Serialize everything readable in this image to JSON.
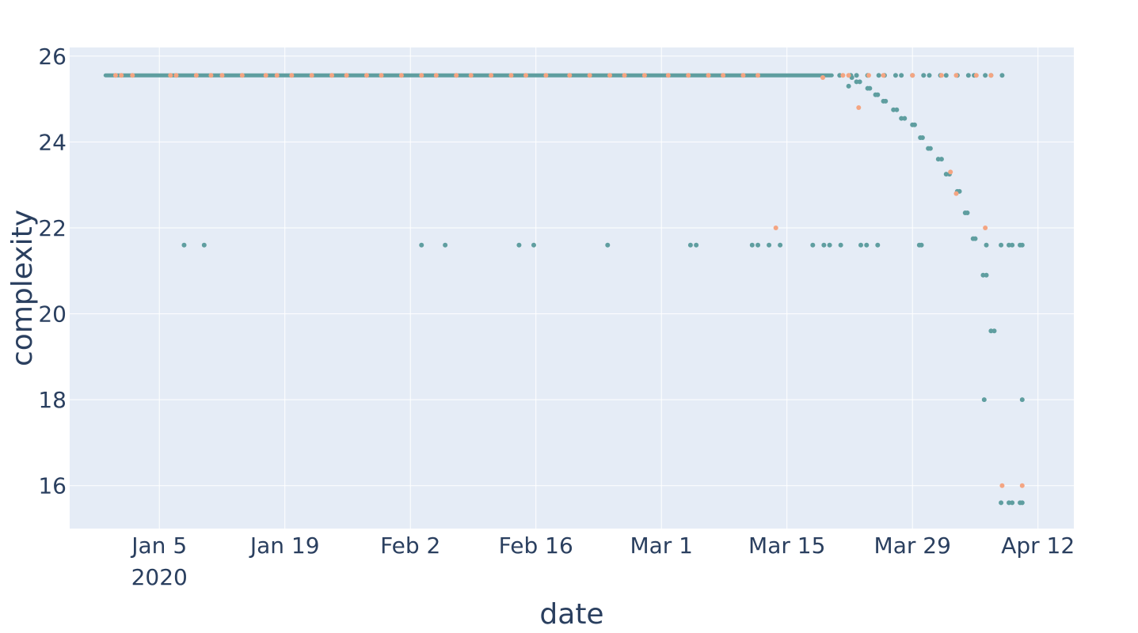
{
  "chart_data": {
    "type": "scatter",
    "title": "",
    "xlabel": "date",
    "ylabel": "complexity",
    "xlim": [
      "2019-12-26",
      "2020-04-16"
    ],
    "ylim": [
      15.0,
      26.2
    ],
    "grid": true,
    "legend": "none",
    "x_ticks": [
      {
        "date": "2020-01-05",
        "label": "Jan 5",
        "sublabel": "2020"
      },
      {
        "date": "2020-01-19",
        "label": "Jan 19"
      },
      {
        "date": "2020-02-02",
        "label": "Feb 2"
      },
      {
        "date": "2020-02-16",
        "label": "Feb 16"
      },
      {
        "date": "2020-03-01",
        "label": "Mar 1"
      },
      {
        "date": "2020-03-15",
        "label": "Mar 15"
      },
      {
        "date": "2020-03-29",
        "label": "Mar 29"
      },
      {
        "date": "2020-04-12",
        "label": "Apr 12"
      }
    ],
    "y_ticks": [
      16,
      18,
      20,
      22,
      24,
      26
    ],
    "colors": {
      "series_teal": "#5f9ea0",
      "series_salmon": "#f4a582",
      "plot_bg": "#e5ecf6",
      "grid": "#ffffff",
      "text": "#2a3f5f"
    },
    "series": [
      {
        "color": "#5f9ea0",
        "band": {
          "start": "2019-12-30",
          "end": "2020-03-20",
          "y": 25.55
        },
        "points": [
          [
            "2020-01-08",
            21.6
          ],
          [
            "2020-01-10",
            21.6
          ],
          [
            "2020-02-03",
            21.6
          ],
          [
            "2020-02-06",
            21.6
          ],
          [
            "2020-02-14",
            21.6
          ],
          [
            "2020-02-16",
            21.6
          ],
          [
            "2020-02-24",
            21.6
          ],
          [
            "2020-03-04",
            21.6
          ],
          [
            "2020-03-05",
            21.6
          ],
          [
            "2020-03-11",
            21.6
          ],
          [
            "2020-03-12",
            21.6
          ],
          [
            "2020-03-13",
            21.6
          ],
          [
            "2020-03-14",
            21.6
          ],
          [
            "2020-03-18",
            21.6
          ],
          [
            "2020-03-19",
            21.6
          ],
          [
            "2020-03-20",
            21.6
          ],
          [
            "2020-03-21",
            21.6
          ],
          [
            "2020-03-23",
            21.6
          ],
          [
            "2020-03-24",
            21.6
          ],
          [
            "2020-03-25",
            21.6
          ],
          [
            "2020-03-30",
            21.6
          ],
          [
            "2020-03-30",
            21.6
          ],
          [
            "2020-04-06",
            21.6
          ],
          [
            "2020-04-08",
            21.6
          ],
          [
            "2020-04-09",
            21.6
          ],
          [
            "2020-04-09",
            21.6
          ],
          [
            "2020-04-10",
            21.6
          ],
          [
            "2020-04-10",
            21.6
          ],
          [
            "2020-03-21",
            25.55
          ],
          [
            "2020-03-22",
            25.55
          ],
          [
            "2020-03-23",
            25.55
          ],
          [
            "2020-03-24",
            25.55
          ],
          [
            "2020-03-25",
            25.55
          ],
          [
            "2020-03-26",
            25.55
          ],
          [
            "2020-03-27",
            25.55
          ],
          [
            "2020-03-28",
            25.55
          ],
          [
            "2020-03-29",
            25.55
          ],
          [
            "2020-03-30",
            25.55
          ],
          [
            "2020-03-31",
            25.55
          ],
          [
            "2020-04-01",
            25.55
          ],
          [
            "2020-04-02",
            25.55
          ],
          [
            "2020-04-03",
            25.55
          ],
          [
            "2020-04-04",
            25.55
          ],
          [
            "2020-04-05",
            25.55
          ],
          [
            "2020-04-06",
            25.55
          ],
          [
            "2020-04-07",
            25.55
          ],
          [
            "2020-04-08",
            25.55
          ],
          [
            "2020-03-22",
            25.5
          ],
          [
            "2020-03-22",
            25.3
          ],
          [
            "2020-03-23",
            25.4
          ],
          [
            "2020-03-23",
            25.4
          ],
          [
            "2020-03-24",
            25.25
          ],
          [
            "2020-03-24",
            25.25
          ],
          [
            "2020-03-25",
            25.1
          ],
          [
            "2020-03-25",
            25.1
          ],
          [
            "2020-03-26",
            24.95
          ],
          [
            "2020-03-26",
            24.95
          ],
          [
            "2020-03-27",
            24.75
          ],
          [
            "2020-03-27",
            24.75
          ],
          [
            "2020-03-28",
            24.55
          ],
          [
            "2020-03-28",
            24.55
          ],
          [
            "2020-03-29",
            24.4
          ],
          [
            "2020-03-29",
            24.4
          ],
          [
            "2020-03-30",
            24.1
          ],
          [
            "2020-03-30",
            24.1
          ],
          [
            "2020-03-31",
            23.85
          ],
          [
            "2020-03-31",
            23.85
          ],
          [
            "2020-04-01",
            23.6
          ],
          [
            "2020-04-01",
            23.6
          ],
          [
            "2020-04-02",
            23.25
          ],
          [
            "2020-04-02",
            23.25
          ],
          [
            "2020-04-03",
            22.85
          ],
          [
            "2020-04-03",
            22.85
          ],
          [
            "2020-04-04",
            22.35
          ],
          [
            "2020-04-04",
            22.35
          ],
          [
            "2020-04-05",
            21.75
          ],
          [
            "2020-04-05",
            21.75
          ],
          [
            "2020-04-06",
            20.9
          ],
          [
            "2020-04-06",
            20.9
          ],
          [
            "2020-04-07",
            19.6
          ],
          [
            "2020-04-07",
            19.6
          ],
          [
            "2020-04-06",
            18.0
          ],
          [
            "2020-04-10",
            18.0
          ],
          [
            "2020-04-08",
            15.6
          ],
          [
            "2020-04-09",
            15.6
          ],
          [
            "2020-04-09",
            15.6
          ],
          [
            "2020-04-10",
            15.6
          ],
          [
            "2020-04-10",
            15.6
          ]
        ]
      },
      {
        "color": "#f4a582",
        "points": [
          [
            "2019-12-31",
            25.55
          ],
          [
            "2020-01-01",
            25.55
          ],
          [
            "2020-01-02",
            25.55
          ],
          [
            "2020-01-06",
            25.55
          ],
          [
            "2020-01-07",
            25.55
          ],
          [
            "2020-01-09",
            25.55
          ],
          [
            "2020-01-11",
            25.55
          ],
          [
            "2020-01-12",
            25.55
          ],
          [
            "2020-01-14",
            25.55
          ],
          [
            "2020-01-17",
            25.55
          ],
          [
            "2020-01-18",
            25.55
          ],
          [
            "2020-01-20",
            25.55
          ],
          [
            "2020-01-22",
            25.55
          ],
          [
            "2020-01-24",
            25.55
          ],
          [
            "2020-01-26",
            25.55
          ],
          [
            "2020-01-28",
            25.55
          ],
          [
            "2020-01-30",
            25.55
          ],
          [
            "2020-02-01",
            25.55
          ],
          [
            "2020-02-03",
            25.55
          ],
          [
            "2020-02-05",
            25.55
          ],
          [
            "2020-02-07",
            25.55
          ],
          [
            "2020-02-09",
            25.55
          ],
          [
            "2020-02-11",
            25.55
          ],
          [
            "2020-02-13",
            25.55
          ],
          [
            "2020-02-15",
            25.55
          ],
          [
            "2020-02-17",
            25.55
          ],
          [
            "2020-02-20",
            25.55
          ],
          [
            "2020-02-22",
            25.55
          ],
          [
            "2020-02-24",
            25.55
          ],
          [
            "2020-02-26",
            25.55
          ],
          [
            "2020-02-28",
            25.55
          ],
          [
            "2020-03-02",
            25.55
          ],
          [
            "2020-03-04",
            25.55
          ],
          [
            "2020-03-06",
            25.55
          ],
          [
            "2020-03-08",
            25.55
          ],
          [
            "2020-03-10",
            25.55
          ],
          [
            "2020-03-12",
            25.55
          ],
          [
            "2020-03-19",
            25.5
          ],
          [
            "2020-03-21",
            25.55
          ],
          [
            "2020-03-22",
            25.55
          ],
          [
            "2020-03-24",
            25.55
          ],
          [
            "2020-03-26",
            25.55
          ],
          [
            "2020-03-29",
            25.55
          ],
          [
            "2020-04-01",
            25.55
          ],
          [
            "2020-04-03",
            25.55
          ],
          [
            "2020-04-05",
            25.55
          ],
          [
            "2020-04-07",
            25.55
          ],
          [
            "2020-03-23",
            24.8
          ],
          [
            "2020-04-02",
            23.3
          ],
          [
            "2020-04-03",
            22.8
          ],
          [
            "2020-04-06",
            22.0
          ],
          [
            "2020-03-14",
            22.0
          ],
          [
            "2020-04-08",
            16.0
          ],
          [
            "2020-04-10",
            16.0
          ]
        ]
      }
    ]
  }
}
